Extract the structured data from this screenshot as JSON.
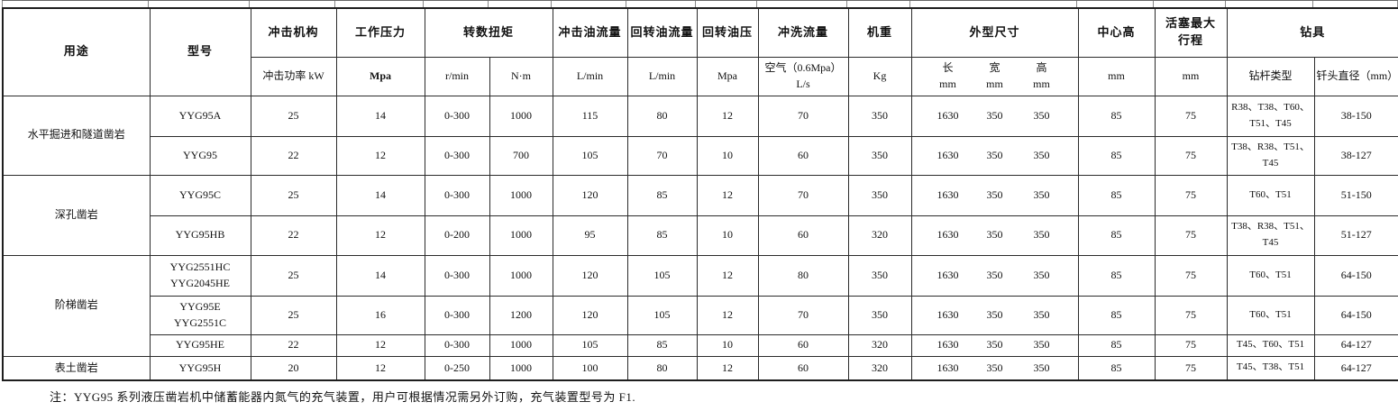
{
  "header": {
    "usage": "用途",
    "model": "型号",
    "impact": "冲击机构",
    "impact_sub": "冲击功率 kW",
    "pressure": "工作压力",
    "pressure_sub": "Mpa",
    "rotation": "转数扭矩",
    "rpm_sub": "r/min",
    "torque_sub": "N·m",
    "impact_oil": "冲击油流量",
    "impact_oil_sub": "L/min",
    "rotary_oil": "回转油流量",
    "rotary_oil_sub": "L/min",
    "rotary_pressure": "回转油压",
    "rotary_pressure_sub": "Mpa",
    "flush": "冲洗流量",
    "flush_sub_line1": "空气（0.6Mpa）",
    "flush_sub_line2": "L/s",
    "weight": "机重",
    "weight_sub": "Kg",
    "dims": "外型尺寸",
    "dims_sub": [
      "长",
      "宽",
      "高"
    ],
    "dims_unit": [
      "mm",
      "mm",
      "mm"
    ],
    "center": "中心高",
    "center_sub": "mm",
    "stroke": "活塞最大行程",
    "stroke_sub": "mm",
    "tools": "钻具",
    "rod": "钻杆类型",
    "bit": "钎头直径（mm）"
  },
  "groups": [
    {
      "usage": "水平掘进和隧道凿岩",
      "rows": [
        {
          "models": [
            "YYG95A"
          ],
          "values": [
            "25",
            "14",
            "0-300",
            "1000",
            "115",
            "80",
            "12",
            "70",
            "350"
          ],
          "dims": [
            "1630",
            "350",
            "350"
          ],
          "center": "85",
          "stroke": "75",
          "rod": "R38、T38、T60、T51、T45",
          "bit": "38-150"
        },
        {
          "models": [
            "YYG95"
          ],
          "values": [
            "22",
            "12",
            "0-300",
            "700",
            "105",
            "70",
            "10",
            "60",
            "350"
          ],
          "dims": [
            "1630",
            "350",
            "350"
          ],
          "center": "85",
          "stroke": "75",
          "rod": "T38、R38、T51、T45",
          "bit": "38-127"
        }
      ]
    },
    {
      "usage": "深孔凿岩",
      "rows": [
        {
          "models": [
            "YYG95C"
          ],
          "values": [
            "25",
            "14",
            "0-300",
            "1000",
            "120",
            "85",
            "12",
            "70",
            "350"
          ],
          "dims": [
            "1630",
            "350",
            "350"
          ],
          "center": "85",
          "stroke": "75",
          "rod": "T60、T51",
          "bit": "51-150"
        },
        {
          "models": [
            "YYG95HB"
          ],
          "values": [
            "22",
            "12",
            "0-200",
            "1000",
            "95",
            "85",
            "10",
            "60",
            "320"
          ],
          "dims": [
            "1630",
            "350",
            "350"
          ],
          "center": "85",
          "stroke": "75",
          "rod": "T38、R38、T51、T45",
          "bit": "51-127"
        }
      ]
    },
    {
      "usage": "阶梯凿岩",
      "rows": [
        {
          "models": [
            "YYG2551HC",
            "YYG2045HE"
          ],
          "values": [
            "25",
            "14",
            "0-300",
            "1000",
            "120",
            "105",
            "12",
            "80",
            "350"
          ],
          "dims": [
            "1630",
            "350",
            "350"
          ],
          "center": "85",
          "stroke": "75",
          "rod": "T60、T51",
          "bit": "64-150"
        },
        {
          "models": [
            "YYG95E",
            "YYG2551C"
          ],
          "values": [
            "25",
            "16",
            "0-300",
            "1200",
            "120",
            "105",
            "12",
            "70",
            "350"
          ],
          "dims": [
            "1630",
            "350",
            "350"
          ],
          "center": "85",
          "stroke": "75",
          "rod": "T60、T51",
          "bit": "64-150"
        },
        {
          "models": [
            "YYG95HE"
          ],
          "values": [
            "22",
            "12",
            "0-300",
            "1000",
            "105",
            "85",
            "10",
            "60",
            "320"
          ],
          "dims": [
            "1630",
            "350",
            "350"
          ],
          "center": "85",
          "stroke": "75",
          "rod": "T45、T60、T51",
          "bit": "64-127"
        }
      ]
    },
    {
      "usage": "表土凿岩",
      "rows": [
        {
          "models": [
            "YYG95H"
          ],
          "values": [
            "20",
            "12",
            "0-250",
            "1000",
            "100",
            "80",
            "12",
            "60",
            "320"
          ],
          "dims": [
            "1630",
            "350",
            "350"
          ],
          "center": "85",
          "stroke": "75",
          "rod": "T45、T38、T51",
          "bit": "64-127"
        }
      ]
    }
  ],
  "note": "注：YYG95 系列液压凿岩机中储蓄能器内氮气的充气装置，用户可根据情况需另外订购，充气装置型号为 F1.",
  "colors": {
    "background": "#ffffff",
    "border": "#2b2b2b",
    "text": "#111111"
  }
}
